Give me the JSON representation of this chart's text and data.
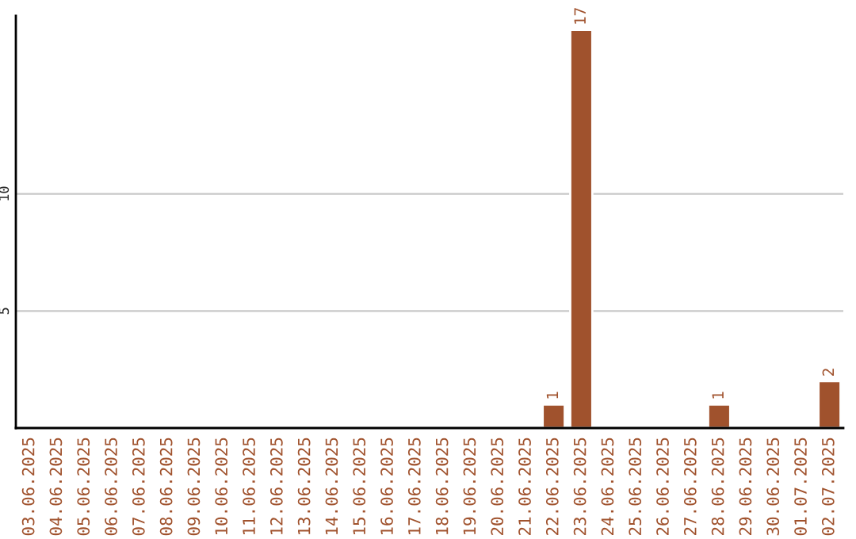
{
  "chart_data": {
    "type": "bar",
    "categories": [
      "03.06.2025",
      "04.06.2025",
      "05.06.2025",
      "06.06.2025",
      "07.06.2025",
      "08.06.2025",
      "09.06.2025",
      "10.06.2025",
      "11.06.2025",
      "12.06.2025",
      "13.06.2025",
      "14.06.2025",
      "15.06.2025",
      "16.06.2025",
      "17.06.2025",
      "18.06.2025",
      "19.06.2025",
      "20.06.2025",
      "21.06.2025",
      "22.06.2025",
      "23.06.2025",
      "24.06.2025",
      "25.06.2025",
      "26.06.2025",
      "27.06.2025",
      "28.06.2025",
      "29.06.2025",
      "30.06.2025",
      "01.07.2025",
      "02.07.2025"
    ],
    "values": [
      0,
      0,
      0,
      0,
      0,
      0,
      0,
      0,
      0,
      0,
      0,
      0,
      0,
      0,
      0,
      0,
      0,
      0,
      0,
      1,
      17,
      0,
      0,
      0,
      0,
      1,
      0,
      0,
      0,
      2
    ],
    "value_labels": [
      null,
      null,
      null,
      null,
      null,
      null,
      null,
      null,
      null,
      null,
      null,
      null,
      null,
      null,
      null,
      null,
      null,
      null,
      null,
      "1",
      "17",
      null,
      null,
      null,
      null,
      "1",
      null,
      null,
      null,
      "2"
    ],
    "color": "#a0522d",
    "ylim": [
      0,
      17.6
    ],
    "yticks": [
      5,
      10
    ],
    "grid": "y"
  }
}
